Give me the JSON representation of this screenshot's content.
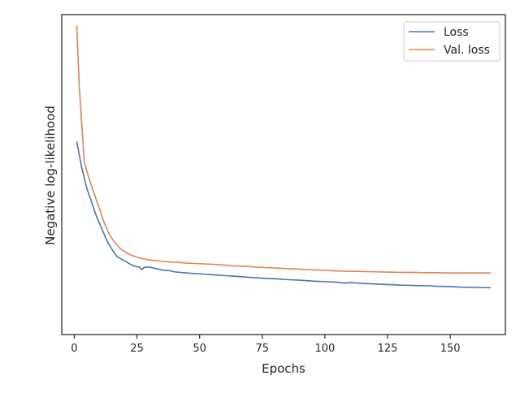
{
  "chart_data": {
    "type": "line",
    "title": "",
    "xlabel": "Epochs",
    "ylabel": "Negative log-likelihood",
    "xlim": [
      -5,
      172
    ],
    "ylim": [
      0.0,
      1.0
    ],
    "x_ticks": [
      0,
      25,
      50,
      75,
      100,
      125,
      150
    ],
    "y_ticks": [],
    "grid": false,
    "legend_position": "upper right",
    "series": [
      {
        "name": "Loss",
        "color": "#4c72b0",
        "points": [
          [
            1,
            0.6
          ],
          [
            3,
            0.51
          ],
          [
            5,
            0.44
          ],
          [
            7,
            0.39
          ],
          [
            9,
            0.34
          ],
          [
            11,
            0.3
          ],
          [
            13,
            0.26
          ],
          [
            15,
            0.23
          ],
          [
            17,
            0.205
          ],
          [
            19,
            0.195
          ],
          [
            21,
            0.185
          ],
          [
            23,
            0.175
          ],
          [
            25,
            0.17
          ],
          [
            26,
            0.168
          ],
          [
            27,
            0.16
          ],
          [
            28,
            0.168
          ],
          [
            30,
            0.168
          ],
          [
            32,
            0.164
          ],
          [
            35,
            0.158
          ],
          [
            38,
            0.156
          ],
          [
            40,
            0.152
          ],
          [
            42,
            0.15
          ],
          [
            45,
            0.148
          ],
          [
            50,
            0.145
          ],
          [
            55,
            0.142
          ],
          [
            60,
            0.139
          ],
          [
            65,
            0.136
          ],
          [
            70,
            0.133
          ],
          [
            75,
            0.13
          ],
          [
            80,
            0.128
          ],
          [
            85,
            0.125
          ],
          [
            90,
            0.123
          ],
          [
            95,
            0.12
          ],
          [
            100,
            0.118
          ],
          [
            105,
            0.116
          ],
          [
            108,
            0.113
          ],
          [
            110,
            0.115
          ],
          [
            115,
            0.112
          ],
          [
            120,
            0.11
          ],
          [
            125,
            0.108
          ],
          [
            130,
            0.106
          ],
          [
            135,
            0.105
          ],
          [
            140,
            0.104
          ],
          [
            145,
            0.102
          ],
          [
            150,
            0.101
          ],
          [
            155,
            0.099
          ],
          [
            160,
            0.098
          ],
          [
            166,
            0.097
          ]
        ]
      },
      {
        "name": "Val. loss",
        "color": "#dd8452",
        "points": [
          [
            1,
            1.0
          ],
          [
            2,
            0.79
          ],
          [
            4,
            0.53
          ],
          [
            6,
            0.47
          ],
          [
            8,
            0.42
          ],
          [
            10,
            0.37
          ],
          [
            12,
            0.32
          ],
          [
            14,
            0.28
          ],
          [
            16,
            0.255
          ],
          [
            18,
            0.235
          ],
          [
            20,
            0.222
          ],
          [
            22,
            0.212
          ],
          [
            25,
            0.202
          ],
          [
            28,
            0.196
          ],
          [
            30,
            0.193
          ],
          [
            35,
            0.188
          ],
          [
            40,
            0.185
          ],
          [
            45,
            0.182
          ],
          [
            50,
            0.18
          ],
          [
            55,
            0.178
          ],
          [
            60,
            0.175
          ],
          [
            65,
            0.172
          ],
          [
            70,
            0.17
          ],
          [
            75,
            0.167
          ],
          [
            80,
            0.165
          ],
          [
            85,
            0.163
          ],
          [
            90,
            0.161
          ],
          [
            95,
            0.159
          ],
          [
            100,
            0.157
          ],
          [
            105,
            0.155
          ],
          [
            110,
            0.154
          ],
          [
            115,
            0.153
          ],
          [
            120,
            0.152
          ],
          [
            125,
            0.151
          ],
          [
            130,
            0.15
          ],
          [
            135,
            0.15
          ],
          [
            140,
            0.149
          ],
          [
            145,
            0.149
          ],
          [
            150,
            0.148
          ],
          [
            155,
            0.148
          ],
          [
            160,
            0.148
          ],
          [
            166,
            0.148
          ]
        ]
      }
    ]
  }
}
